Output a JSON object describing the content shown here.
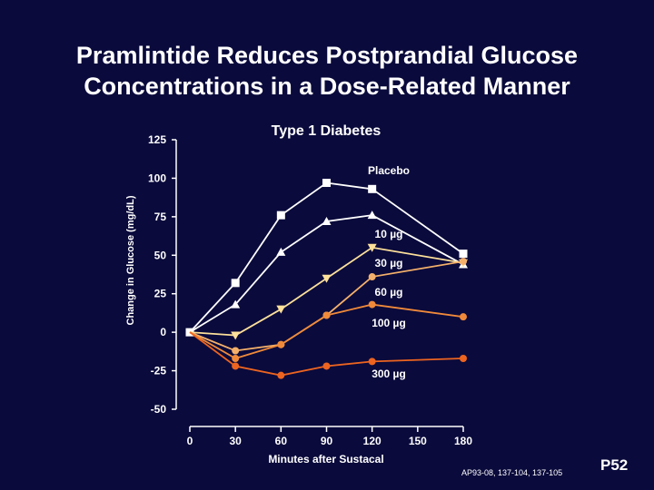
{
  "slide": {
    "title_line1": "Pramlintide Reduces Postprandial Glucose",
    "title_line2": "Concentrations in a Dose-Related Manner",
    "source_note": "AP93-08, 137-104, 137-105",
    "slide_number": "P52"
  },
  "chart_data": {
    "type": "line",
    "subtitle": "Type 1 Diabetes",
    "xlabel": "Minutes after Sustacal",
    "ylabel": "Change in Glucose (mg/dL)",
    "x_ticks": [
      "0",
      "30",
      "60",
      "90",
      "120",
      "150",
      "180"
    ],
    "y_ticks": [
      "125",
      "100",
      "75",
      "50",
      "25",
      "0",
      "-25",
      "-50"
    ],
    "xlim": [
      0,
      180
    ],
    "ylim": [
      -50,
      125
    ],
    "grid": false,
    "series": [
      {
        "name": "Placebo",
        "color": "#ffffff",
        "marker": "square",
        "x": [
          0,
          30,
          60,
          90,
          120,
          180
        ],
        "values": [
          0,
          32,
          76,
          97,
          93,
          51
        ]
      },
      {
        "name": "10 µg",
        "color": "#ffffff",
        "marker": "triangle-up",
        "x": [
          0,
          30,
          60,
          90,
          120,
          180
        ],
        "values": [
          0,
          18,
          52,
          72,
          76,
          44
        ]
      },
      {
        "name": "30 µg",
        "color": "#fde09a",
        "marker": "triangle-down",
        "x": [
          0,
          30,
          60,
          90,
          120,
          180
        ],
        "values": [
          0,
          -2,
          15,
          35,
          55,
          45
        ]
      },
      {
        "name": "60 µg",
        "color": "#f4b06a",
        "marker": "circle",
        "x": [
          0,
          30,
          60,
          90,
          120,
          180
        ],
        "values": [
          0,
          -12,
          -8,
          11,
          36,
          46
        ]
      },
      {
        "name": "100 µg",
        "color": "#f08a3a",
        "marker": "circle",
        "x": [
          0,
          30,
          60,
          90,
          120,
          180
        ],
        "values": [
          0,
          -17,
          -8,
          11,
          18,
          10
        ]
      },
      {
        "name": "300 µg",
        "color": "#ec6420",
        "marker": "circle",
        "x": [
          0,
          30,
          60,
          90,
          120,
          180
        ],
        "values": [
          0,
          -22,
          -28,
          -22,
          -19,
          -17
        ]
      }
    ]
  }
}
